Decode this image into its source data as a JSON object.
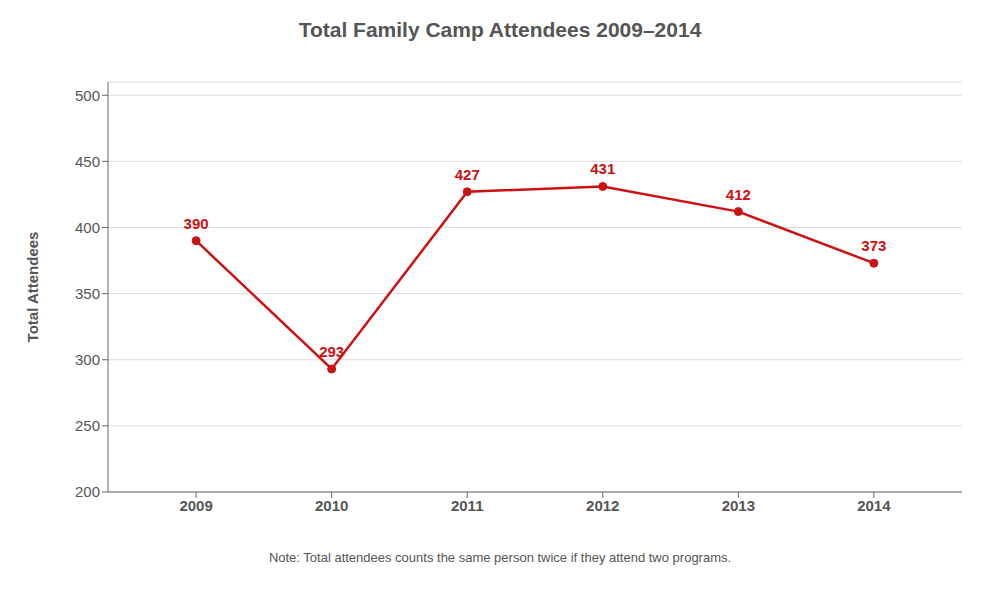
{
  "chart_data": {
    "type": "line",
    "title": "Total Family Camp Attendees 2009–2014",
    "ylabel": "Total Attendees",
    "note": "Note: Total attendees counts the same person twice if they attend two programs.",
    "x": [
      2009,
      2010,
      2011,
      2012,
      2013,
      2014
    ],
    "values": [
      390,
      293,
      427,
      431,
      412,
      373
    ],
    "color": "#cc1111",
    "marker": "circle",
    "xlim": [
      2008.35,
      2014.65
    ],
    "xticks": [
      2009,
      2010,
      2011,
      2012,
      2013,
      2014
    ],
    "ylim": [
      200,
      510
    ],
    "yticks": [
      200,
      250,
      300,
      350,
      400,
      450,
      500
    ],
    "grid": true,
    "data_labels": true
  }
}
